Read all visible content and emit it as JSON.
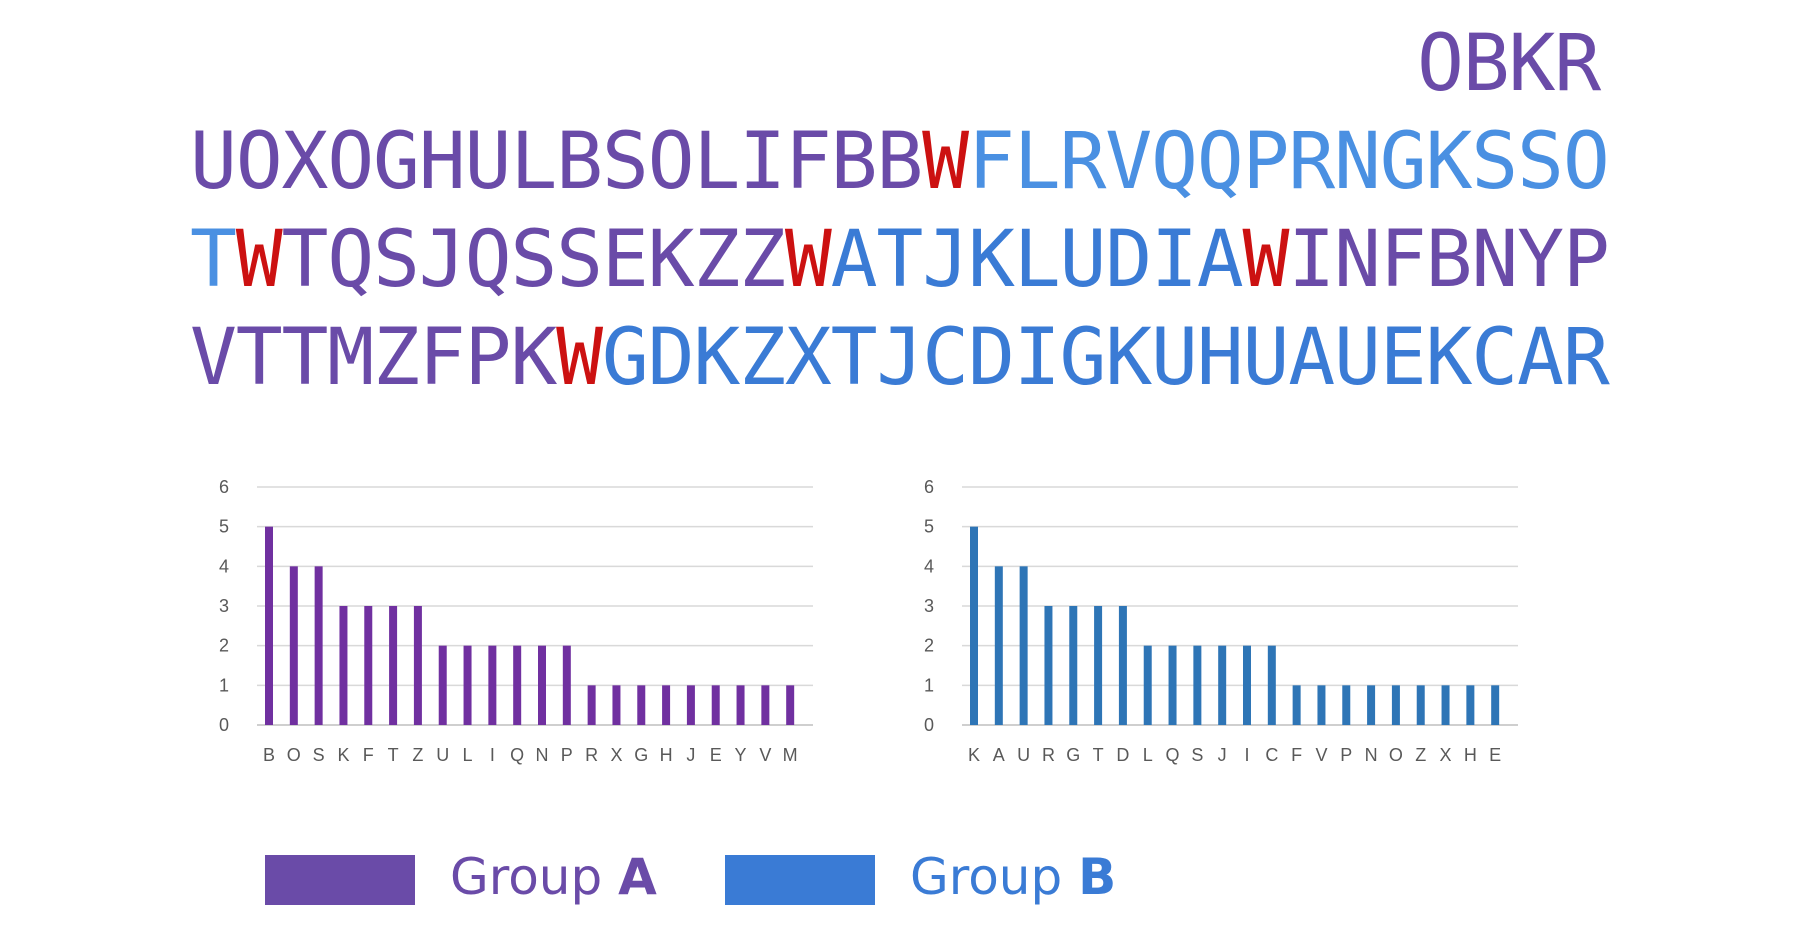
{
  "colors": {
    "group_a": "#6a4ba8",
    "group_b": "#3a7bd5",
    "group_b_light": "#4a90e2",
    "highlight": "#cc1111",
    "bar_a": "#7030a0",
    "bar_b": "#2e75b6",
    "grid": "#d9d9d9",
    "tick": "#595959"
  },
  "sequence": {
    "lines": [
      [
        {
          "text": "OBKR",
          "color": "group_a"
        }
      ],
      [
        {
          "text": "UOXOGHULBSOLIFBB",
          "color": "group_a"
        },
        {
          "text": "W",
          "color": "highlight"
        },
        {
          "text": "FLRVQQPRNGKSSO",
          "color": "group_b_light"
        }
      ],
      [
        {
          "text": "T",
          "color": "group_b_light"
        },
        {
          "text": "W",
          "color": "highlight"
        },
        {
          "text": "TQSJQSSEKZZ",
          "color": "group_a"
        },
        {
          "text": "W",
          "color": "highlight"
        },
        {
          "text": "ATJKLUDIA",
          "color": "group_b"
        },
        {
          "text": "W",
          "color": "highlight"
        },
        {
          "text": "INFBNYP",
          "color": "group_a"
        }
      ],
      [
        {
          "text": "VTTMZFPK",
          "color": "group_a"
        },
        {
          "text": "W",
          "color": "highlight"
        },
        {
          "text": "GDKZXTJCDIGKUHUAUEKCAR",
          "color": "group_b"
        }
      ]
    ]
  },
  "chart_data": [
    {
      "type": "bar",
      "categories": [
        "B",
        "O",
        "S",
        "K",
        "F",
        "T",
        "Z",
        "U",
        "L",
        "I",
        "Q",
        "N",
        "P",
        "R",
        "X",
        "G",
        "H",
        "J",
        "E",
        "Y",
        "V",
        "M"
      ],
      "values": [
        5,
        4,
        4,
        3,
        3,
        3,
        3,
        2,
        2,
        2,
        2,
        2,
        2,
        1,
        1,
        1,
        1,
        1,
        1,
        1,
        1,
        1
      ],
      "ylim": [
        0,
        6
      ],
      "yticks": [
        0,
        1,
        2,
        3,
        4,
        5,
        6
      ],
      "grid": true,
      "color": "bar_a"
    },
    {
      "type": "bar",
      "categories": [
        "K",
        "A",
        "U",
        "R",
        "G",
        "T",
        "D",
        "L",
        "Q",
        "S",
        "J",
        "I",
        "C",
        "F",
        "V",
        "P",
        "N",
        "O",
        "Z",
        "X",
        "H",
        "E"
      ],
      "values": [
        5,
        4,
        4,
        3,
        3,
        3,
        3,
        2,
        2,
        2,
        2,
        2,
        2,
        1,
        1,
        1,
        1,
        1,
        1,
        1,
        1,
        1
      ],
      "ylim": [
        0,
        6
      ],
      "yticks": [
        0,
        1,
        2,
        3,
        4,
        5,
        6
      ],
      "grid": true,
      "color": "bar_b"
    }
  ],
  "legend": {
    "items": [
      {
        "prefix": "Group ",
        "letter": "A",
        "color": "group_a"
      },
      {
        "prefix": "Group ",
        "letter": "B",
        "color": "group_b"
      }
    ]
  }
}
